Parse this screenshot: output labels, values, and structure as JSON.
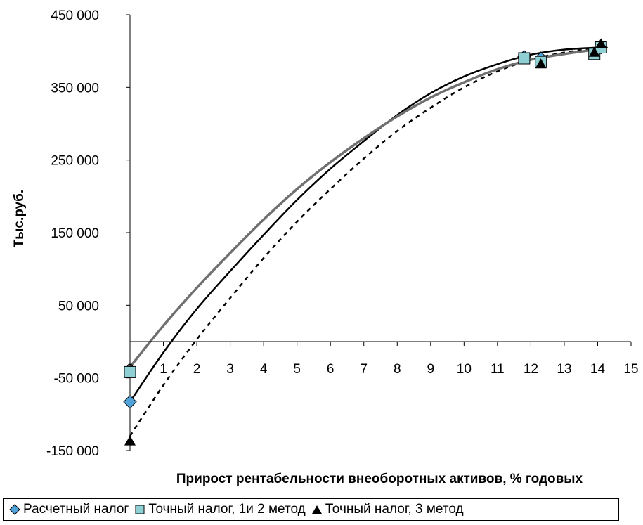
{
  "chart_data": {
    "type": "line",
    "title": "",
    "xlabel": "Прирост рентабельности внеоборотных активов, % годовых",
    "ylabel": "Тыс.руб.",
    "xlim": [
      0,
      15
    ],
    "ylim": [
      -150000,
      450000
    ],
    "x_ticks": [
      "0",
      "1",
      "2",
      "3",
      "4",
      "5",
      "6",
      "7",
      "8",
      "9",
      "10",
      "11",
      "12",
      "13",
      "14",
      "15"
    ],
    "y_ticks": [
      "450 000",
      "350 000",
      "250 000",
      "150 000",
      "50 000",
      "-50 000",
      "-150 000"
    ],
    "y_tick_values": [
      450000,
      350000,
      250000,
      150000,
      50000,
      -50000,
      -150000
    ],
    "grid": false,
    "legend_position": "bottom",
    "series": [
      {
        "name": "Расчетный налог",
        "line_style": "solid",
        "line_color": "#000000",
        "marker": "diamond",
        "marker_color": "#4fa3d9",
        "x": [
          0,
          1,
          2,
          3,
          4,
          5,
          6,
          7,
          8,
          9,
          10,
          11,
          12,
          13,
          14.1
        ],
        "y": [
          -83000,
          -15000,
          45000,
          97000,
          147000,
          195000,
          238000,
          276000,
          312000,
          342000,
          365000,
          382000,
          395000,
          402000,
          405000
        ],
        "markers": [
          [
            0,
            -83000
          ],
          [
            11.8,
            392000
          ],
          [
            12.3,
            390000
          ],
          [
            14.1,
            405000
          ]
        ]
      },
      {
        "name": "Точный налог, 1и 2  метод",
        "line_style": "solid",
        "line_color": "#707070",
        "marker": "square",
        "marker_color": "#8fd0d4",
        "x": [
          0,
          1,
          2,
          3,
          4,
          5,
          6,
          7,
          8,
          9,
          10,
          11,
          12,
          13,
          14.1
        ],
        "y": [
          -35000,
          22000,
          74000,
          122000,
          168000,
          210000,
          247000,
          280000,
          310000,
          336000,
          357000,
          375000,
          388000,
          396000,
          403000
        ],
        "markers": [
          [
            0,
            -42000
          ],
          [
            11.8,
            390000
          ],
          [
            12.3,
            385000
          ],
          [
            13.9,
            396000
          ],
          [
            14.1,
            405000
          ]
        ]
      },
      {
        "name": "Точный налог, 3 метод",
        "line_style": "dashed",
        "line_color": "#000000",
        "marker": "triangle",
        "marker_color": "#000000",
        "x": [
          0,
          1,
          2,
          3,
          4,
          5,
          6,
          7,
          8,
          9,
          10,
          11,
          12,
          13,
          14.1
        ],
        "y": [
          -130000,
          -60000,
          3000,
          60000,
          115000,
          165000,
          210000,
          252000,
          290000,
          322000,
          350000,
          372000,
          388000,
          398000,
          405000
        ],
        "markers": [
          [
            0,
            -137000
          ],
          [
            12.3,
            382000
          ],
          [
            13.9,
            398000
          ],
          [
            14.1,
            410000
          ]
        ]
      }
    ]
  }
}
